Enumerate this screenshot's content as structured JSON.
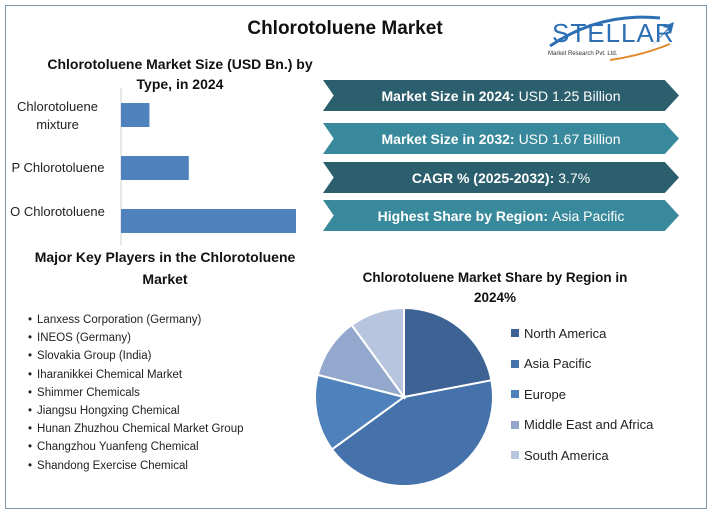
{
  "title": "Chlorotoluene Market",
  "logo": {
    "text": "STELLAR",
    "subtext": "Market Research Pvt. Ltd."
  },
  "highlights": [
    {
      "label": "Market Size in 2024:",
      "value": "USD 1.25 Billion",
      "color": "#2c5f6e"
    },
    {
      "label": "Market Size in 2032:",
      "value": "USD 1.67 Billion",
      "color": "#38899b"
    },
    {
      "label": "CAGR % (2025-2032):",
      "value": "3.7%",
      "color": "#2c5f6e"
    },
    {
      "label": "Highest Share by Region:",
      "value": "Asia Pacific",
      "color": "#38899b"
    }
  ],
  "players": {
    "title": "Major Key Players in the Chlorotoluene Market",
    "items": [
      "Lanxess Corporation (Germany)",
      "INEOS (Germany)",
      "Slovakia Group (India)",
      "Iharanikkei Chemical Market",
      "Shimmer Chemicals",
      "Jiangsu Hongxing Chemical",
      "Hunan Zhuzhou Chemical Market Group",
      "Changzhou Yuanfeng Chemical",
      "Shandong Exercise Chemical"
    ]
  },
  "chart_data": [
    {
      "type": "bar",
      "orientation": "horizontal",
      "title": "Chlorotoluene Market Size (USD Bn.) by Type, in 2024",
      "categories": [
        "Chlorotoluene mixture",
        "P Chlorotoluene",
        "O Chlorotoluene"
      ],
      "values": [
        0.13,
        0.31,
        0.8
      ],
      "color": "#4f81bd",
      "grid": false
    },
    {
      "type": "pie",
      "title": "Chlorotoluene Market Share by Region in 2024%",
      "categories": [
        "North America",
        "Asia Pacific",
        "Europe",
        "Middle East and Africa",
        "South America"
      ],
      "values": [
        22,
        43,
        14,
        11,
        10
      ],
      "colors": [
        "#3c6393",
        "#4572aa",
        "#4f81bd",
        "#93a8cc",
        "#b8c5de"
      ],
      "legend": "right"
    }
  ]
}
